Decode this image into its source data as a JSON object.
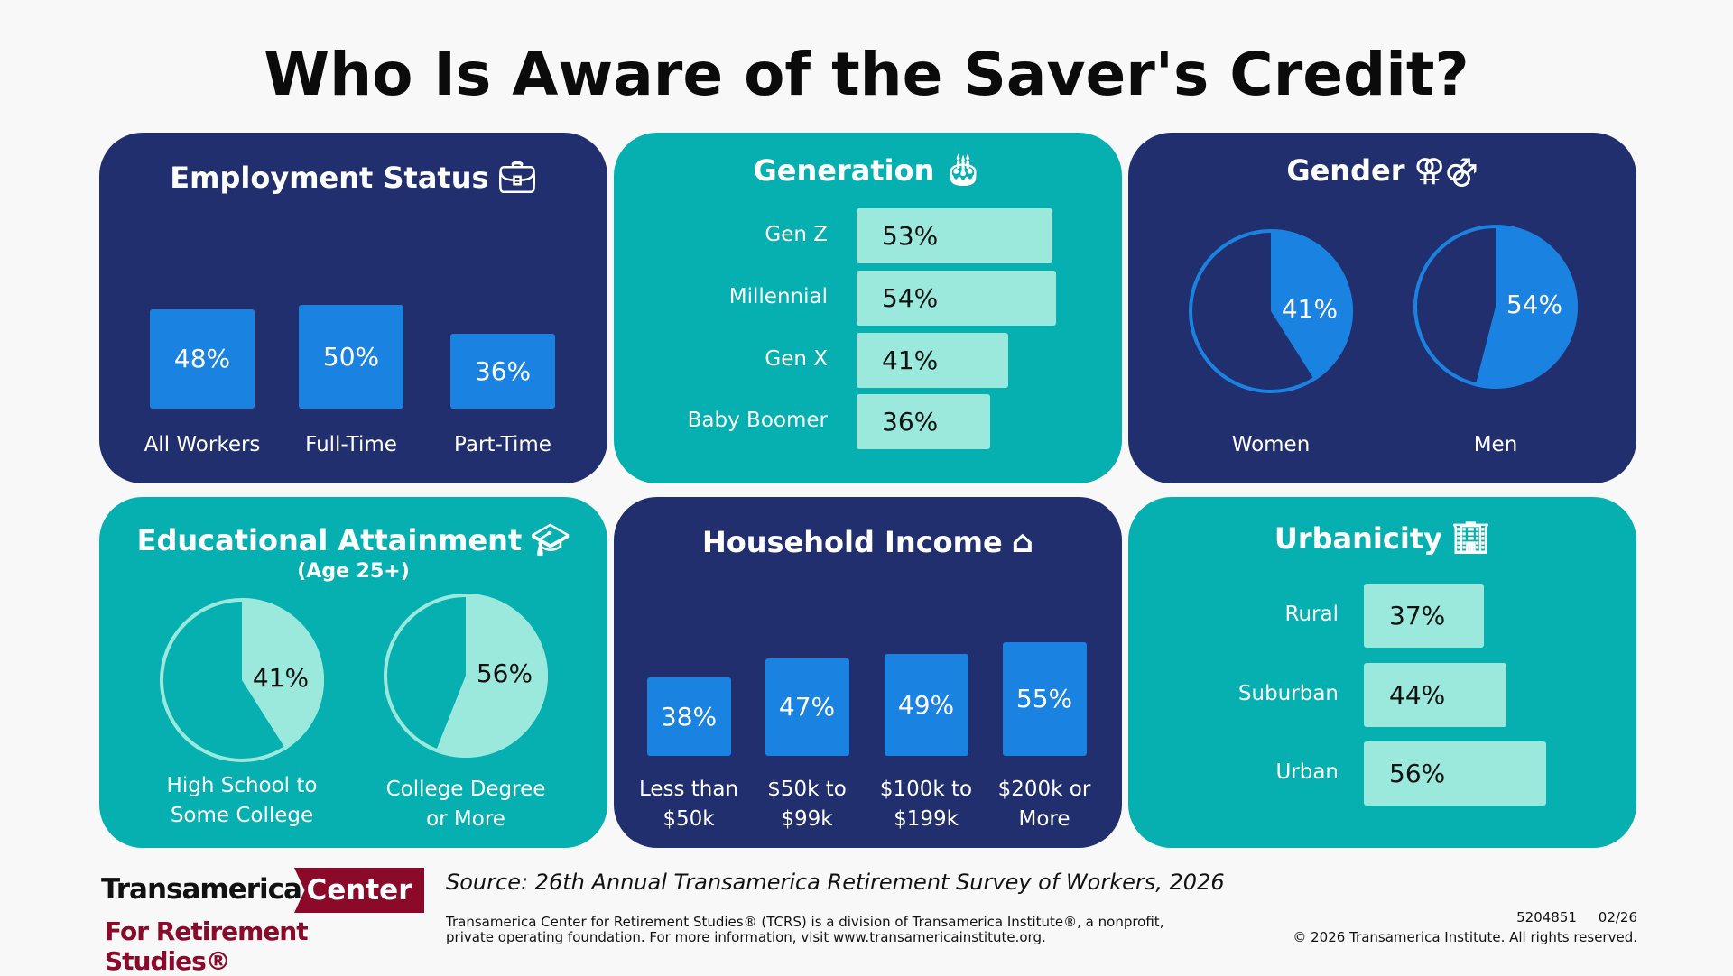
{
  "title": "Who Is Aware of the Saver's Credit?",
  "colors": {
    "navy": "#222f6e",
    "teal": "#07b0b0",
    "blue": "#1a82e0",
    "mint": "#9ae9dc",
    "brand_red": "#8b0a2a"
  },
  "chart_data": [
    {
      "type": "bar",
      "title": "Employment Status",
      "icon": "briefcase-icon",
      "categories": [
        "All Workers",
        "Full-Time",
        "Part-Time"
      ],
      "values": [
        48,
        50,
        36
      ],
      "labels": [
        "48%",
        "50%",
        "36%"
      ]
    },
    {
      "type": "bar",
      "orientation": "horizontal",
      "title": "Generation",
      "icon": "birthday-cake-icon",
      "categories": [
        "Gen Z",
        "Millennial",
        "Gen X",
        "Baby Boomer"
      ],
      "values": [
        53,
        54,
        41,
        36
      ],
      "labels": [
        "53%",
        "54%",
        "41%",
        "36%"
      ]
    },
    {
      "type": "pie",
      "title": "Gender",
      "icon": "gender-symbols-icon",
      "categories": [
        "Women",
        "Men"
      ],
      "values": [
        41,
        54
      ],
      "labels": [
        "41%",
        "54%"
      ]
    },
    {
      "type": "pie",
      "title": "Educational Attainment",
      "subtitle": "(Age 25+)",
      "icon": "graduation-cap-icon",
      "categories": [
        "High School to Some College",
        "College Degree or More"
      ],
      "category_lines": [
        [
          "High School to",
          "Some College"
        ],
        [
          "College Degree",
          "or More"
        ]
      ],
      "values": [
        41,
        56
      ],
      "labels": [
        "41%",
        "56%"
      ]
    },
    {
      "type": "bar",
      "title": "Household Income",
      "icon": "house-icon",
      "categories": [
        "Less than $50k",
        "$50k to $99k",
        "$100k to $199k",
        "$200k or More"
      ],
      "category_lines": [
        [
          "Less than",
          "$50k"
        ],
        [
          "$50k to",
          "$99k"
        ],
        [
          "$100k to",
          "$199k"
        ],
        [
          "$200k or",
          "More"
        ]
      ],
      "values": [
        38,
        47,
        49,
        55
      ],
      "labels": [
        "38%",
        "47%",
        "49%",
        "55%"
      ]
    },
    {
      "type": "bar",
      "orientation": "horizontal",
      "title": "Urbanicity",
      "icon": "buildings-icon",
      "categories": [
        "Rural",
        "Suburban",
        "Urban"
      ],
      "values": [
        37,
        44,
        56
      ],
      "labels": [
        "37%",
        "44%",
        "56%"
      ]
    }
  ],
  "footer": {
    "logo_line1a": "Transamerica",
    "logo_line1b": "Center",
    "logo_line2": "For Retirement Studies®",
    "source": "Source: 26th Annual Transamerica Retirement Survey of Workers, 2026",
    "disclaimer1": "Transamerica Center for Retirement Studies® (TCRS) is a division of Transamerica Institute®, a nonprofit,",
    "disclaimer2": "private operating foundation. For more information, visit www.transamericainstitute.org.",
    "code": "5204851     02/26",
    "copyright": "© 2026 Transamerica Institute. All rights reserved."
  }
}
